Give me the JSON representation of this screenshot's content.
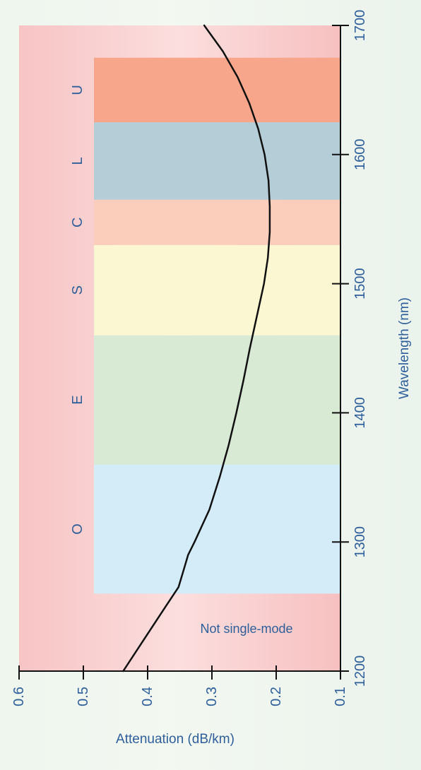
{
  "chart_data": {
    "type": "line",
    "orientation": "rotated-90",
    "xlabel": "Wavelength (nm)",
    "ylabel": "Attenuation (dB/km)",
    "xlim": [
      1200,
      1700
    ],
    "ylim": [
      0.1,
      0.6
    ],
    "x_ticks": [
      "1200",
      "1300",
      "1400",
      "1500",
      "1600",
      "1700"
    ],
    "y_ticks": [
      "0.6",
      "0.5",
      "0.4",
      "0.3",
      "0.2",
      "0.1"
    ],
    "bands": [
      {
        "name": "O",
        "start": 1260,
        "end": 1360,
        "color": "#d3ecf8"
      },
      {
        "name": "E",
        "start": 1360,
        "end": 1460,
        "color": "#d8ead3"
      },
      {
        "name": "S",
        "start": 1460,
        "end": 1530,
        "color": "#fbf7d2"
      },
      {
        "name": "C",
        "start": 1530,
        "end": 1565,
        "color": "#fbcdbb"
      },
      {
        "name": "L",
        "start": 1565,
        "end": 1625,
        "color": "#b5cdd7"
      },
      {
        "name": "U",
        "start": 1625,
        "end": 1675,
        "color": "#f8a68b"
      }
    ],
    "annotation": "Not single-mode",
    "series": [
      {
        "color": "#111111",
        "x": [
          1200,
          1225,
          1250,
          1265,
          1280,
          1290,
          1300,
          1325,
          1350,
          1375,
          1400,
          1425,
          1450,
          1475,
          1500,
          1520,
          1540,
          1560,
          1580,
          1600,
          1620,
          1640,
          1660,
          1680,
          1700
        ],
        "y": [
          0.438,
          0.405,
          0.372,
          0.352,
          0.343,
          0.337,
          0.327,
          0.304,
          0.288,
          0.274,
          0.262,
          0.251,
          0.241,
          0.23,
          0.219,
          0.213,
          0.21,
          0.21,
          0.212,
          0.218,
          0.228,
          0.242,
          0.26,
          0.283,
          0.312
        ]
      }
    ]
  }
}
